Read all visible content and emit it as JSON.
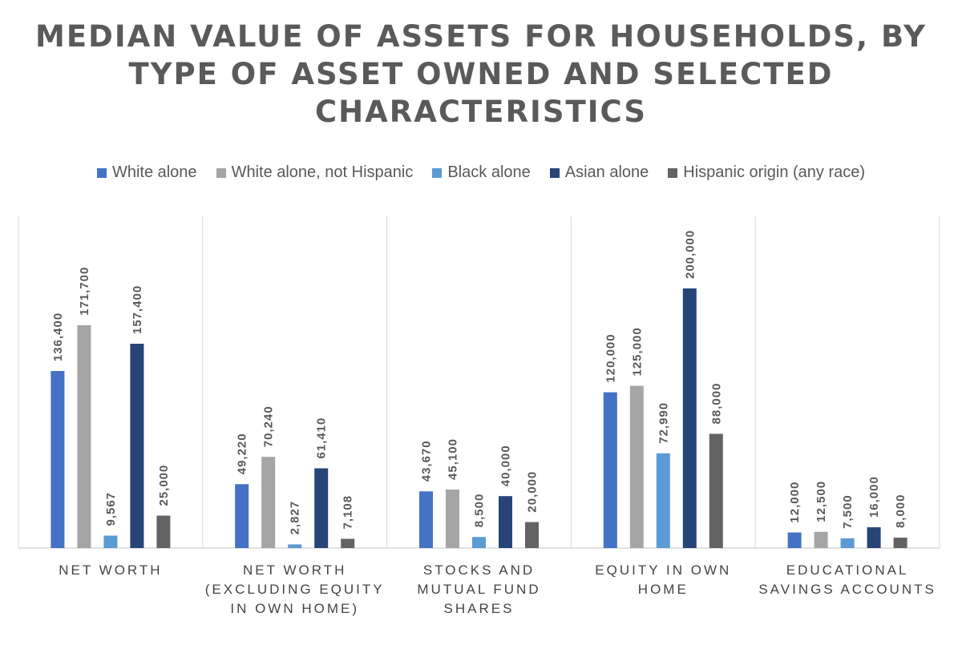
{
  "chart_data": {
    "type": "bar",
    "title_lines": [
      "MEDIAN VALUE OF ASSETS FOR HOUSEHOLDS, BY",
      "TYPE OF ASSET OWNED AND SELECTED",
      "CHARACTERISTICS"
    ],
    "categories": [
      [
        "NET WORTH"
      ],
      [
        "NET WORTH",
        "(EXCLUDING EQUITY",
        "IN OWN HOME)"
      ],
      [
        "STOCKS AND",
        "MUTUAL FUND",
        "SHARES"
      ],
      [
        "EQUITY IN OWN",
        "HOME"
      ],
      [
        "EDUCATIONAL",
        "SAVINGS ACCOUNTS"
      ]
    ],
    "series": [
      {
        "name": "White alone",
        "color": "#4472c4",
        "values": [
          136400,
          49220,
          43670,
          120000,
          12000
        ],
        "labels": [
          "136,400",
          "49,220",
          "43,670",
          "120,000",
          "12,000"
        ]
      },
      {
        "name": "White alone, not Hispanic",
        "color": "#a5a5a5",
        "values": [
          171700,
          70240,
          45100,
          125000,
          12500
        ],
        "labels": [
          "171,700",
          "70,240",
          "45,100",
          "125,000",
          "12,500"
        ]
      },
      {
        "name": "Black alone",
        "color": "#5b9bd5",
        "values": [
          9567,
          2827,
          8500,
          72990,
          7500
        ],
        "labels": [
          "9,567",
          "2,827",
          "8,500",
          "72,990",
          "7,500"
        ]
      },
      {
        "name": "Asian alone",
        "color": "#264478",
        "values": [
          157400,
          61410,
          40000,
          200000,
          16000
        ],
        "labels": [
          "157,400",
          "61,410",
          "40,000",
          "200,000",
          "16,000"
        ]
      },
      {
        "name": "Hispanic origin (any race)",
        "color": "#636363",
        "values": [
          25000,
          7108,
          20000,
          88000,
          8000
        ],
        "labels": [
          "25,000",
          "7,108",
          "20,000",
          "88,000",
          "8,000"
        ]
      }
    ],
    "ylim": [
      0,
      200000
    ],
    "grid": false,
    "legend_position": "top",
    "data_labels": "rotated-vertical"
  }
}
